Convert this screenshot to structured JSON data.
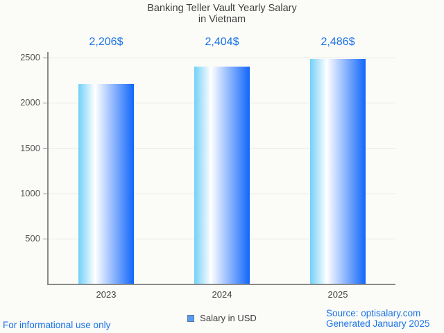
{
  "chart_data": {
    "type": "bar",
    "title": "Banking Teller Vault Yearly Salary in Vietnam",
    "title_lines": [
      "Banking Teller Vault Yearly Salary",
      "in Vietnam"
    ],
    "categories": [
      "2023",
      "2024",
      "2025"
    ],
    "values": [
      2206,
      2404,
      2486
    ],
    "value_labels": [
      "2,206$",
      "2,404$",
      "2,486$"
    ],
    "series": [
      {
        "name": "Salary in USD",
        "values": [
          2206,
          2404,
          2486
        ]
      }
    ],
    "legend": "Salary in USD",
    "legend_position": "bottom",
    "xlabel": "",
    "ylabel": "",
    "ylim": [
      0,
      2500
    ],
    "yticks": [
      500,
      1000,
      1500,
      2000,
      2500
    ],
    "grid": true
  },
  "footer": {
    "left": "For informational use only",
    "source": "Source: optisalary.com",
    "generated": "Generated January 2025"
  },
  "colors": {
    "accent_blue": "#1a73e8",
    "bar_gradient_left": "#72d0f8",
    "bar_gradient_mid": "#ffffff",
    "bar_gradient_right": "#1166fa",
    "legend_box_fill": "#5a9cf0",
    "legend_box_border": "#55759e",
    "axis_line": "#8a8a8a",
    "gridline": "#e8e8e5",
    "tick_label": "#565656",
    "title_text": "#3f3f3f",
    "background": "#fbfbf8"
  }
}
